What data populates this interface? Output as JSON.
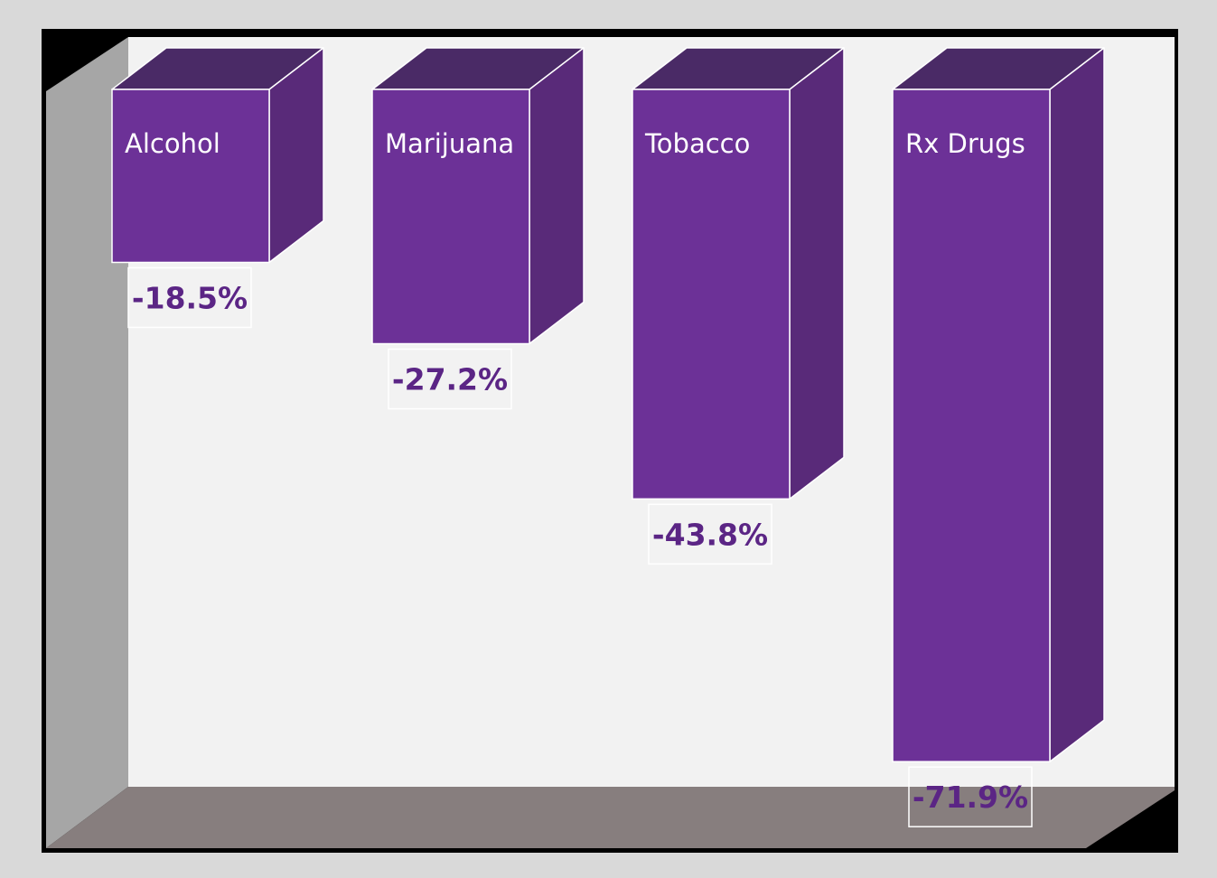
{
  "chart_data": {
    "type": "bar",
    "categories": [
      "Alcohol",
      "Marijuana",
      "Tobacco",
      "Rx Drugs"
    ],
    "values": [
      -18.5,
      -27.2,
      -43.8,
      -71.9
    ],
    "value_labels": [
      "-18.5%",
      "-27.2%",
      "-43.8%",
      "-71.9%"
    ],
    "title": "",
    "xlabel": "",
    "ylabel": "",
    "ylim": [
      -75,
      0
    ],
    "grid": false,
    "legend": "none",
    "style": "3d-column"
  },
  "colors": {
    "page_background": "#d9d9d9",
    "frame": "#000000",
    "back_wall": "#f2f2f2",
    "side_wall": "#a6a6a6",
    "floor": "#877e7e",
    "bar_front": "#6c3197",
    "bar_side": "#592a79",
    "bar_top": "#4a2a66",
    "bar_edge": "#ffffff",
    "category_label": "#ffffff",
    "value_label": "#5b2585",
    "value_label_box": "#ffffff"
  }
}
